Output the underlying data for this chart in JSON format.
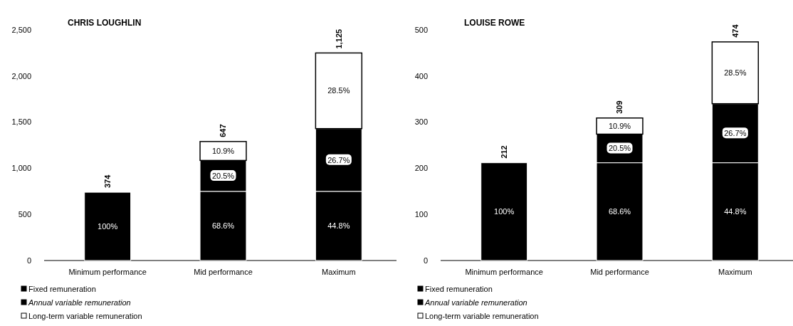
{
  "chart_data": [
    {
      "type": "bar",
      "title": "CHRIS LOUGHLIN",
      "stacked": true,
      "categories": [
        "Minimum performance",
        "Mid performance",
        "Maximum"
      ],
      "series": [
        {
          "name": "Fixed remuneration",
          "color": "#000000",
          "values": [
            740,
            750,
            750
          ]
        },
        {
          "name": "Annual variable remuneration",
          "color": "#000000",
          "values": [
            0,
            335,
            680
          ]
        },
        {
          "name": "Long-term variable remuneration",
          "color": "#ffffff",
          "values": [
            0,
            205,
            820
          ]
        }
      ],
      "annotations": [
        "100%",
        {
          "text": "374",
          "x": "Minimum performance",
          "y": 740
        },
        "68.6%",
        "20.5%",
        "10.9%",
        {
          "text": "647",
          "x": "Mid performance",
          "y": 1290
        },
        "44.8%",
        "26.7%",
        "28.5%",
        {
          "text": "1,125",
          "x": "Maximum",
          "y": 2250
        }
      ],
      "ylim": [
        0,
        2500
      ],
      "yticks": [
        0,
        500,
        {
          "value": 1000,
          "label": "1,000"
        },
        {
          "value": 1500,
          "label": "1,500"
        },
        {
          "value": 2000,
          "label": "2,000"
        },
        {
          "value": 2500,
          "label": "2,500"
        }
      ],
      "legend": "bottom left"
    },
    {
      "type": "bar",
      "title": "LOUISE ROWE",
      "stacked": true,
      "categories": [
        "Minimum performance",
        "Mid performance",
        "Maximum"
      ],
      "series": [
        {
          "name": "Fixed remuneration",
          "color": "#000000",
          "values": [
            212,
            212,
            212
          ]
        },
        {
          "name": "Annual variable remuneration",
          "color": "#000000",
          "values": [
            0,
            62,
            128
          ]
        },
        {
          "name": "Long-term variable remuneration",
          "color": "#ffffff",
          "values": [
            0,
            35,
            134
          ]
        }
      ],
      "annotations": [
        "100%",
        {
          "text": "212",
          "x": "Minimum performance",
          "y": 212
        },
        "68.6%",
        "20.5%",
        "10.9%",
        {
          "text": "309",
          "x": "Mid performance",
          "y": 309
        },
        "44.8%",
        "26.7%",
        "28.5%",
        {
          "text": "474",
          "x": "Maximum",
          "y": 474
        }
      ],
      "ylim": [
        0,
        500
      ],
      "yticks": [
        0,
        100,
        200,
        300,
        400,
        500
      ],
      "legend": "bottom left"
    }
  ]
}
